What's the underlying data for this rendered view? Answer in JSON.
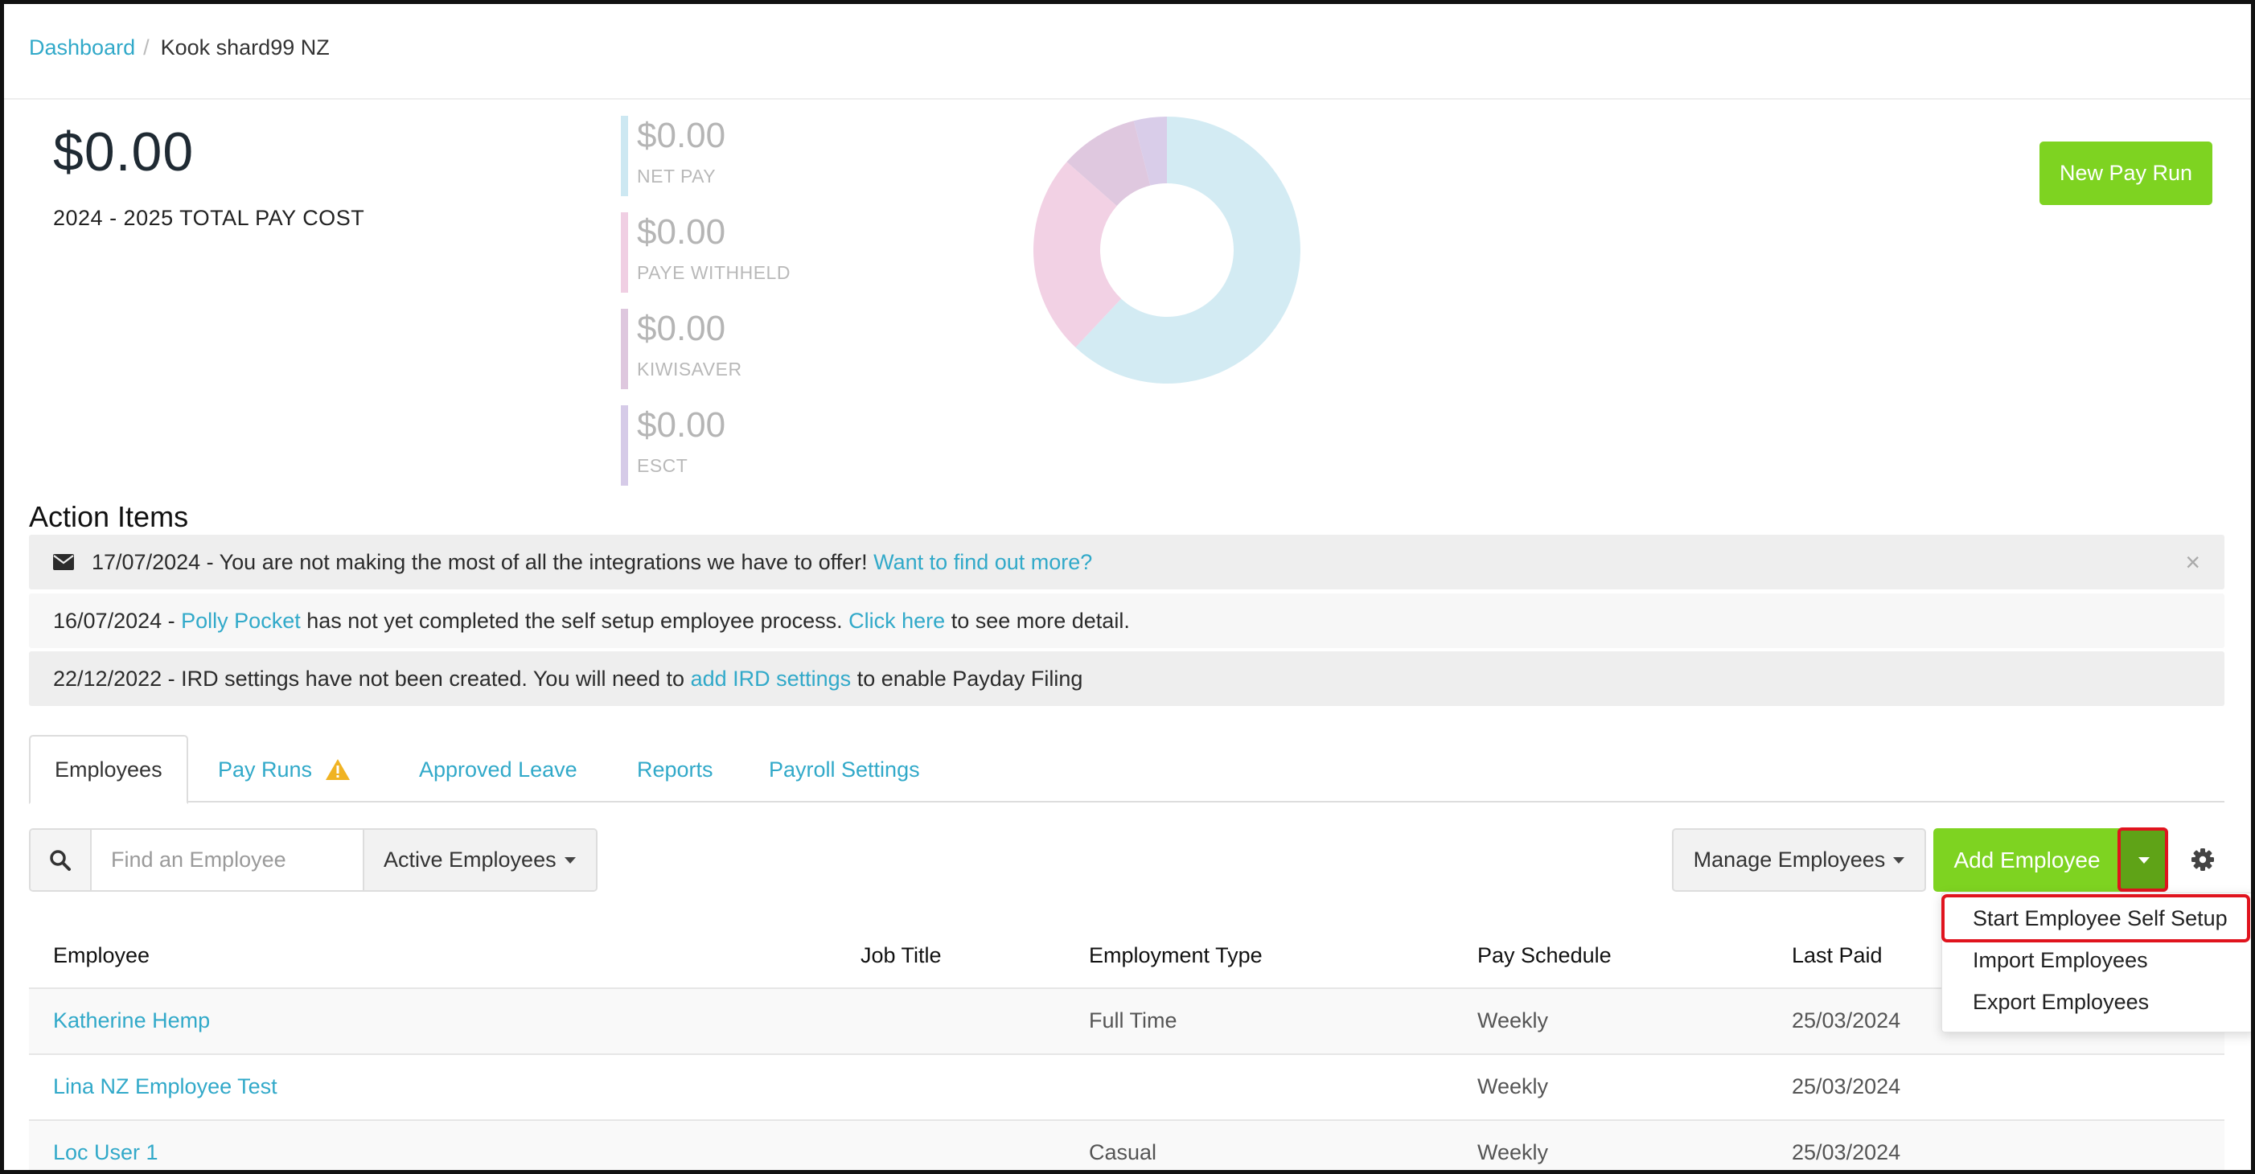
{
  "breadcrumb": {
    "root": "Dashboard",
    "separator": "/",
    "current": "Kook shard99 NZ"
  },
  "summary": {
    "total_amount": "$0.00",
    "total_label": "2024 - 2025 TOTAL PAY COST",
    "breakdown": [
      {
        "amount": "$0.00",
        "label": "NET PAY",
        "color": "#cde8f2"
      },
      {
        "amount": "$0.00",
        "label": "PAYE WITHHELD",
        "color": "#f0cfe3"
      },
      {
        "amount": "$0.00",
        "label": "KIWISAVER",
        "color": "#dec7de"
      },
      {
        "amount": "$0.00",
        "label": "ESCT",
        "color": "#d6cbe8"
      }
    ]
  },
  "donut": {
    "segments": [
      {
        "name": "NET PAY",
        "fraction": 0.62,
        "color": "#d3ebf3"
      },
      {
        "name": "PAYE WITHHELD",
        "fraction": 0.245,
        "color": "#f2d1e4"
      },
      {
        "name": "KIWISAVER",
        "fraction": 0.095,
        "color": "#dfc8df"
      },
      {
        "name": "ESCT",
        "fraction": 0.04,
        "color": "#d9cde9"
      }
    ]
  },
  "new_pay_run_label": "New Pay Run",
  "action_items": {
    "title": "Action Items",
    "items": [
      {
        "text": "17/07/2024 - You are not making the most of all the integrations we have to offer!",
        "link": "Want to find out more?"
      },
      {
        "prefix": "16/07/2024 -",
        "link1": "Polly Pocket",
        "middle": "has not yet completed the self setup employee process.",
        "link2": "Click here",
        "suffix": "to see more detail."
      },
      {
        "prefix": "22/12/2022 - IRD settings have not been created. You will need to",
        "link": "add IRD settings",
        "suffix": "to enable Payday Filing"
      }
    ],
    "close_symbol": "×"
  },
  "tabs": [
    {
      "label": "Employees",
      "active": true
    },
    {
      "label": "Pay Runs",
      "warning": true
    },
    {
      "label": "Approved Leave"
    },
    {
      "label": "Reports"
    },
    {
      "label": "Payroll Settings"
    }
  ],
  "toolbar": {
    "search_placeholder": "Find an Employee",
    "filter_label": "Active Employees",
    "manage_label": "Manage Employees",
    "add_label": "Add Employee"
  },
  "add_menu": {
    "items": [
      "Start Employee Self Setup",
      "Import Employees",
      "Export Employees"
    ]
  },
  "table": {
    "headers": [
      "Employee",
      "Job Title",
      "Employment Type",
      "Pay Schedule",
      "Last Paid"
    ],
    "rows": [
      {
        "employee": "Katherine Hemp",
        "job_title": "",
        "employment_type": "Full Time",
        "pay_schedule": "Weekly",
        "last_paid": "25/03/2024"
      },
      {
        "employee": "Lina NZ Employee Test",
        "job_title": "",
        "employment_type": "",
        "pay_schedule": "Weekly",
        "last_paid": "25/03/2024"
      },
      {
        "employee": "Loc User 1",
        "job_title": "",
        "employment_type": "Casual",
        "pay_schedule": "Weekly",
        "last_paid": "25/03/2024"
      }
    ]
  },
  "colors": {
    "accent_link": "#31a9c9",
    "primary_green": "#7ed321",
    "dark_green": "#5fa317",
    "highlight_red": "#e0141e"
  }
}
